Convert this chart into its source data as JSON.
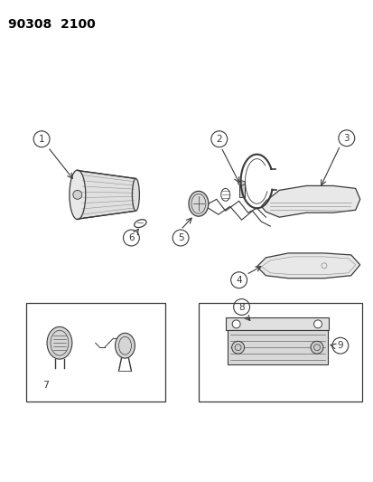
{
  "title": "90308  2100",
  "bg_color": "#ffffff",
  "title_fontsize": 10,
  "fig_width": 4.14,
  "fig_height": 5.33,
  "dpi": 100,
  "gray": "#3a3a3a",
  "light_gray": "#888888",
  "mid_gray": "#666666"
}
